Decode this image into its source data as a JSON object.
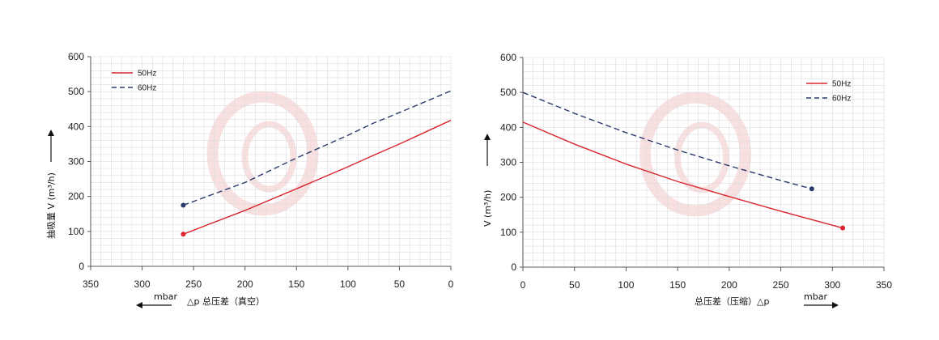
{
  "colors": {
    "series_50": "#d9262e",
    "series_60": "#2a3a6b",
    "grid": "#dcdcdc",
    "axis": "#555555",
    "watermark": "#f3c7c7"
  },
  "chart_data": [
    {
      "type": "line",
      "xlim": [
        350,
        0
      ],
      "ylim": [
        0,
        600
      ],
      "xticks": [
        350,
        300,
        250,
        200,
        150,
        100,
        50,
        0
      ],
      "yticks": [
        0,
        100,
        200,
        300,
        400,
        500,
        600
      ],
      "xlabel": "△p 总压差（真空）",
      "unit_label": "mbar",
      "ylabel": "抽吸量 V (m³/h)",
      "grid": true,
      "legend_position": "top-left",
      "series": [
        {
          "name": "50Hz",
          "color": "#d9262e",
          "dash": "solid",
          "x": [
            260,
            200,
            150,
            100,
            75,
            50,
            0
          ],
          "y": [
            92,
            160,
            222,
            285,
            318,
            350,
            418
          ]
        },
        {
          "name": "60Hz",
          "color": "#2a3a6b",
          "dash": "dashed",
          "x": [
            260,
            200,
            150,
            100,
            75,
            50,
            0
          ],
          "y": [
            175,
            240,
            310,
            375,
            410,
            440,
            502
          ]
        }
      ]
    },
    {
      "type": "line",
      "xlim": [
        0,
        350
      ],
      "ylim": [
        0,
        600
      ],
      "xticks": [
        0,
        50,
        100,
        150,
        200,
        250,
        300,
        350
      ],
      "yticks": [
        0,
        100,
        200,
        300,
        400,
        500,
        600
      ],
      "xlabel": "总压差（压缩）△p",
      "unit_label": "mbar",
      "ylabel": "V (m³/h)",
      "grid": true,
      "legend_position": "top-right",
      "series": [
        {
          "name": "50Hz",
          "color": "#d9262e",
          "dash": "solid",
          "x": [
            0,
            50,
            100,
            150,
            200,
            250,
            310
          ],
          "y": [
            415,
            352,
            295,
            245,
            202,
            160,
            112
          ]
        },
        {
          "name": "60Hz",
          "color": "#2a3a6b",
          "dash": "dashed",
          "x": [
            0,
            50,
            100,
            150,
            200,
            250,
            280
          ],
          "y": [
            500,
            440,
            385,
            335,
            290,
            248,
            224
          ]
        }
      ]
    }
  ]
}
